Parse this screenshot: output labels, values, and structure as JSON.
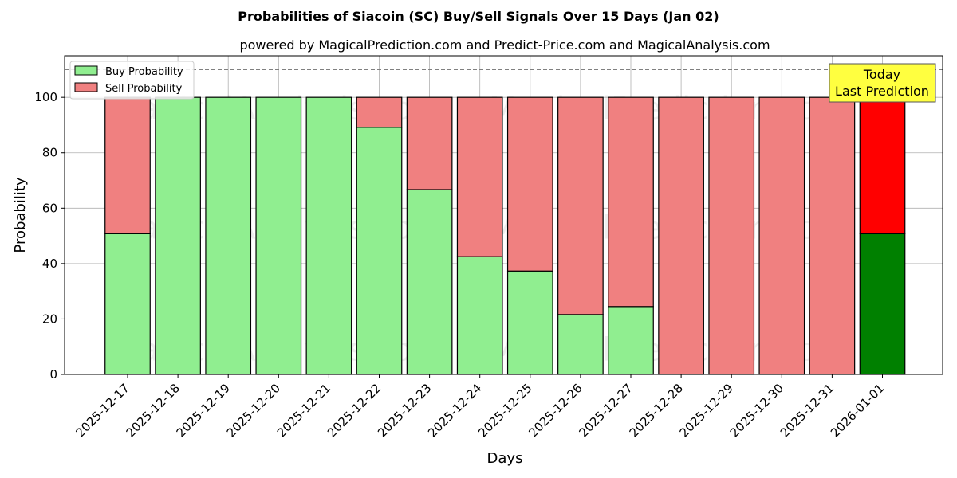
{
  "chart_data": {
    "type": "bar",
    "stacked": true,
    "title": "Probabilities of Siacoin (SC) Buy/Sell Signals Over 15 Days (Jan 02)",
    "subtitle": "powered by MagicalPrediction.com and Predict-Price.com and MagicalAnalysis.com",
    "xlabel": "Days",
    "ylabel": "Probability",
    "ylim": [
      0,
      115
    ],
    "yticks": [
      0,
      20,
      40,
      60,
      80,
      100
    ],
    "grid": true,
    "legend_position": "top-left",
    "reference_line": 110,
    "categories": [
      "2025-12-17",
      "2025-12-18",
      "2025-12-19",
      "2025-12-20",
      "2025-12-21",
      "2025-12-22",
      "2025-12-23",
      "2025-12-24",
      "2025-12-25",
      "2025-12-26",
      "2025-12-27",
      "2025-12-28",
      "2025-12-29",
      "2025-12-30",
      "2025-12-31",
      "2026-01-01"
    ],
    "series": [
      {
        "name": "Buy Probability",
        "color": "#90ee90",
        "highlight_color": "#008000",
        "values": [
          50.8,
          100,
          100,
          100,
          100,
          89.2,
          66.7,
          42.5,
          37.3,
          21.6,
          24.5,
          0,
          0,
          0,
          0,
          50.8
        ]
      },
      {
        "name": "Sell Probability",
        "color": "#f08080",
        "highlight_color": "#ff0000",
        "values": [
          49.2,
          0,
          0,
          0,
          0,
          10.8,
          33.3,
          57.5,
          62.7,
          78.4,
          75.5,
          100,
          100,
          100,
          100,
          49.2
        ]
      }
    ],
    "highlight_index": 15,
    "annotation": {
      "line1": "Today",
      "line2": "Last Prediction",
      "background": "#ffff40"
    },
    "watermarks": [
      "MagicalAnalysis.com",
      "MagicalPrediction.com"
    ]
  }
}
